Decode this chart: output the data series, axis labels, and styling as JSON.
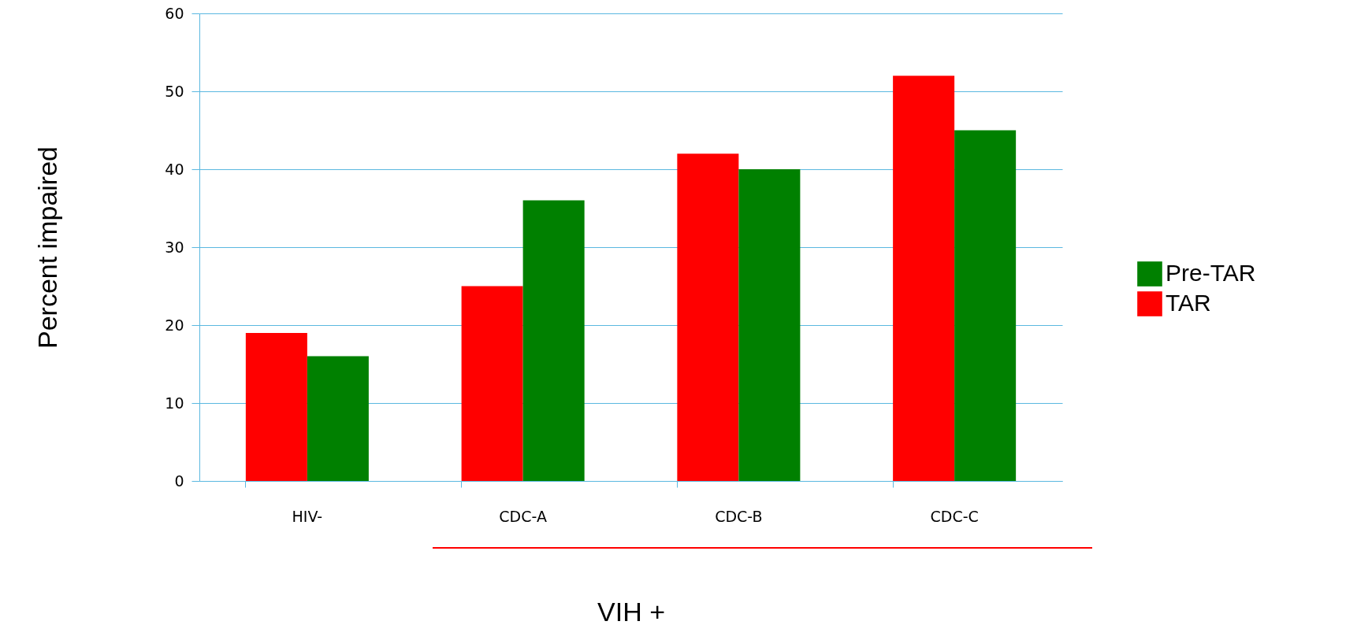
{
  "chart_data": {
    "type": "bar",
    "xlabel": "VIH +",
    "ylabel": "Percent impaired",
    "categories": [
      "HIV-",
      "CDC-A",
      "CDC-B",
      "CDC-C"
    ],
    "series": [
      {
        "name": "TAR",
        "color": "#ff0000",
        "values": [
          19,
          25,
          42,
          52
        ]
      },
      {
        "name": "Pre-TAR",
        "color": "#008000",
        "values": [
          16,
          36,
          40,
          45
        ]
      }
    ],
    "ylim": [
      0,
      60
    ],
    "yticks": [
      0,
      10,
      20,
      30,
      40,
      50,
      60
    ],
    "grid": "y",
    "legend": "right"
  }
}
